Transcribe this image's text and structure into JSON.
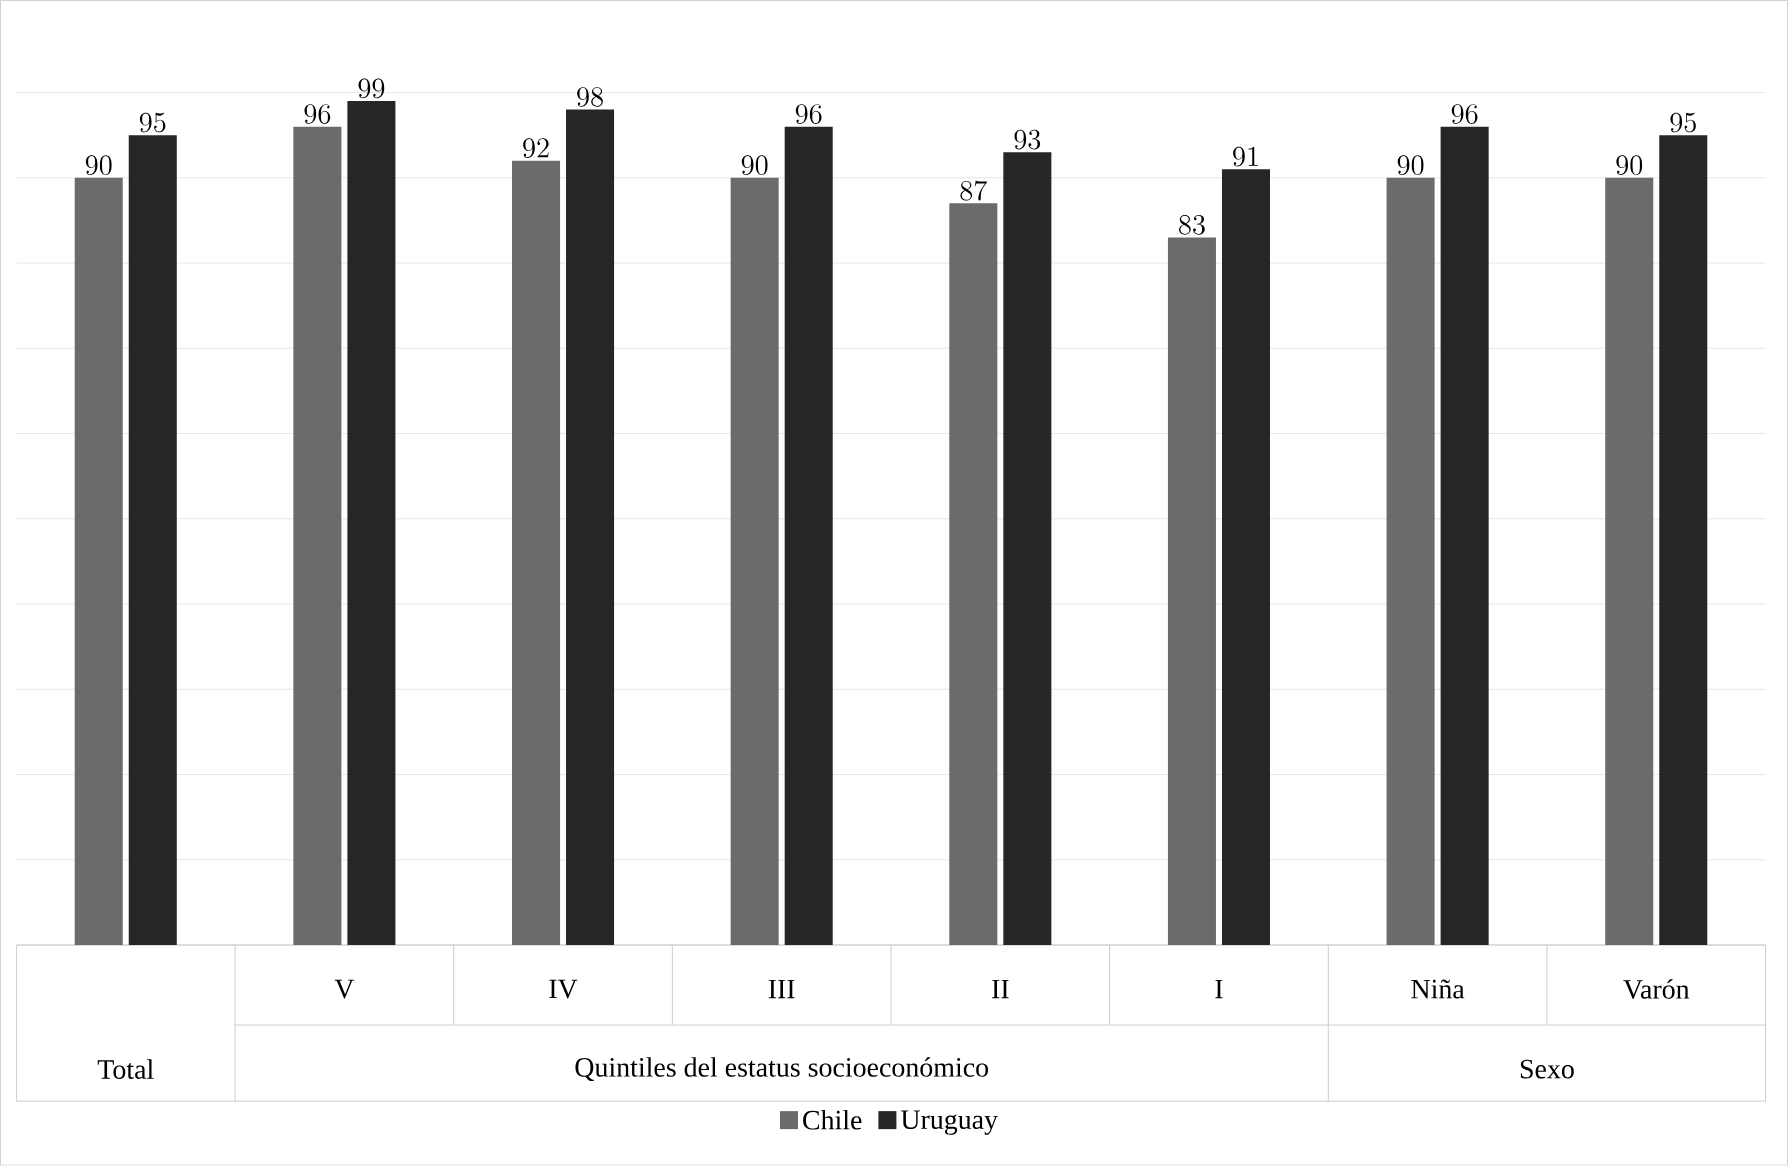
{
  "chart_data": {
    "type": "bar",
    "categories": [
      null,
      "V",
      "IV",
      "III",
      "II",
      "I",
      "Niña",
      "Varón"
    ],
    "series": [
      {
        "name": "Chile",
        "color": "#6b6b6b",
        "values": [
          90,
          96,
          92,
          90,
          87,
          83,
          90,
          90
        ]
      },
      {
        "name": "Uruguay",
        "color": "#262626",
        "values": [
          95,
          99,
          98,
          96,
          93,
          91,
          96,
          95
        ]
      }
    ],
    "annotations": [
      "Total",
      "Quintiles del estatus socioeconómico",
      "Sexo"
    ],
    "grid": "y",
    "tick_labels": "x",
    "data_labels": true,
    "legend": "bottom"
  }
}
